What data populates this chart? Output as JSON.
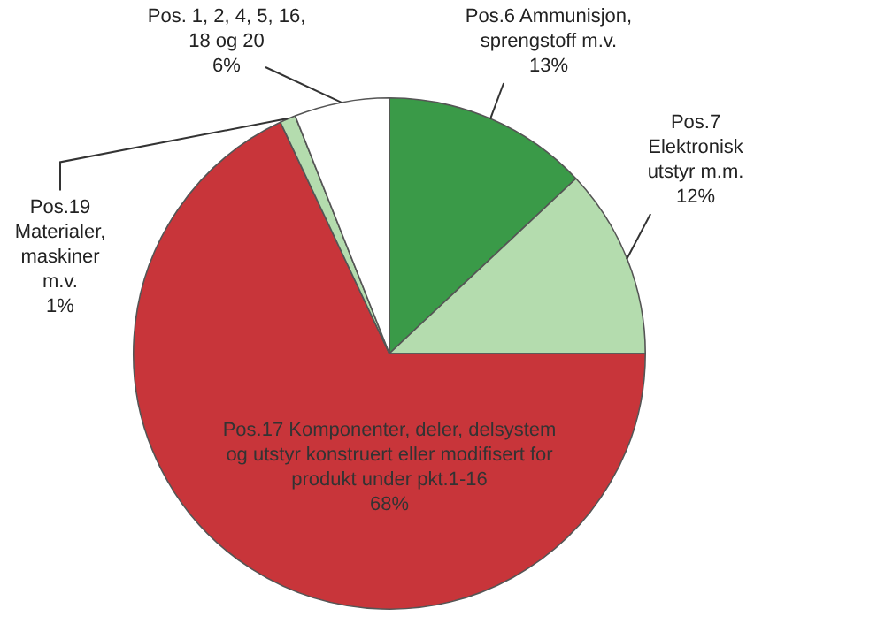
{
  "chart_data": {
    "type": "pie",
    "categories": [
      "Pos.6 Ammunisjon, sprengstoff m.v.",
      "Pos.7 Elektronisk utstyr m.m.",
      "Pos.17 Komponenter, deler, delsystem og utstyr konstruert eller modifisert for produkt under  pkt.1-16",
      "Pos.19 Materialer, maskiner m.v.",
      "Pos. 1, 2, 4, 5, 16, 18 og 20"
    ],
    "values": [
      13,
      12,
      68,
      1,
      6
    ],
    "value_labels": [
      "13%",
      "12%",
      "68%",
      "1%",
      "6%"
    ],
    "colors": [
      "#3a9a48",
      "#b4dcae",
      "#c8353a",
      "#b4dcae",
      "#ffffff"
    ],
    "legend": false
  }
}
